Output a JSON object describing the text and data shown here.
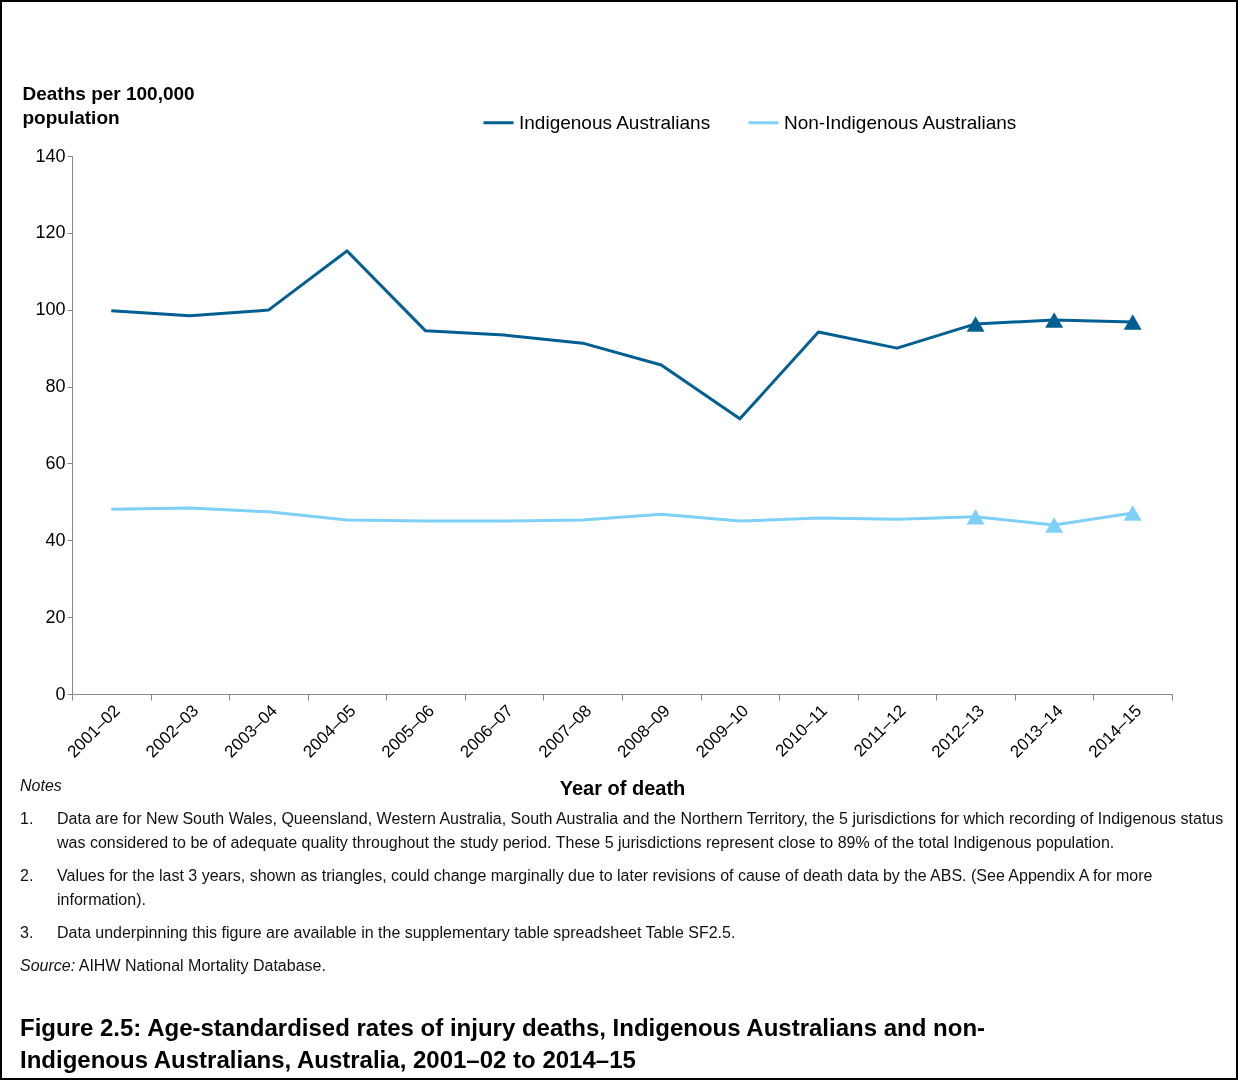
{
  "chart_data": {
    "type": "line",
    "title": "Figure 2.5: Age-standardised rates of injury deaths, Indigenous Australians and non-Indigenous Australians, Australia, 2001–02 to 2014–15",
    "xlabel": "Year of death",
    "ylabel": "Deaths per 100,000 population",
    "categories": [
      "2001–02",
      "2002–03",
      "2003–04",
      "2004–05",
      "2005–06",
      "2006–07",
      "2007–08",
      "2008–09",
      "2009–10",
      "2010–11",
      "2011–12",
      "2012–13",
      "2013–14",
      "2014–15"
    ],
    "series": [
      {
        "name": "Indigenous Australians",
        "color": "#005f91",
        "values": [
          99.7,
          98.4,
          99.9,
          115.3,
          94.5,
          93.4,
          91.3,
          85.6,
          71.6,
          94.2,
          90.0,
          96.3,
          97.3,
          96.8
        ]
      },
      {
        "name": "Non-Indigenous Australians",
        "color": "#7fd0f7",
        "values": [
          48.1,
          48.4,
          47.4,
          45.3,
          45.0,
          45.0,
          45.3,
          46.8,
          45.0,
          45.8,
          45.5,
          46.1,
          44.0,
          47.1
        ]
      },
      {
        "type": "scatter",
        "marker": "triangle",
        "color": "#005f91",
        "x": [
          "2012–13",
          "2013–14",
          "2014–15"
        ],
        "values": [
          96.3,
          97.3,
          96.8
        ]
      },
      {
        "type": "scatter",
        "marker": "triangle",
        "color": "#7fd0f7",
        "x": [
          "2012–13",
          "2013–14",
          "2014–15"
        ],
        "values": [
          46.1,
          44.0,
          47.1
        ]
      }
    ],
    "ylim": [
      0,
      140
    ],
    "yticks": [
      0,
      20,
      40,
      60,
      80,
      100,
      120,
      140
    ],
    "grid": false,
    "legend": "top right",
    "line_style": "solid",
    "annotations": [
      "Notes",
      "1.\tData are for New South Wales, Queensland, Western Australia, South Australia and the Northern Territory, the 5 jurisdictions for which recording of Indigenous status was considered to be of adequate quality throughout the study period. These 5 jurisdictions represent close to 89% of the total Indigenous population.",
      "2.\tValues for the last 3 years, shown as triangles, could change marginally due to later revisions of cause of death data by the ABS. (See Appendix A for more information).",
      "3.\tData underpinning this figure are available in the supplementary table spreadsheet Table SF2.5.",
      "Source: AIHW National Mortality Database."
    ]
  }
}
